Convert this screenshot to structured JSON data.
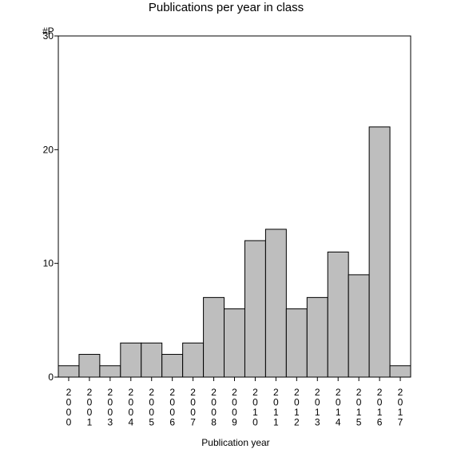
{
  "chart_data": {
    "type": "bar",
    "title": "Publications per year in class",
    "xlabel": "Publication year",
    "ylabel": "#P",
    "ylim": [
      0,
      30
    ],
    "yticks": [
      0,
      10,
      20,
      30
    ],
    "grid": false,
    "legend": "none",
    "categories": [
      "2000",
      "2001",
      "2003",
      "2004",
      "2005",
      "2006",
      "2007",
      "2008",
      "2009",
      "2010",
      "2011",
      "2012",
      "2013",
      "2014",
      "2015",
      "2016",
      "2017"
    ],
    "values": [
      1,
      2,
      1,
      3,
      3,
      2,
      3,
      7,
      6,
      12,
      13,
      6,
      7,
      11,
      9,
      22,
      1
    ],
    "colors": {
      "bar": "#bebebe",
      "edge": "#000000"
    }
  }
}
